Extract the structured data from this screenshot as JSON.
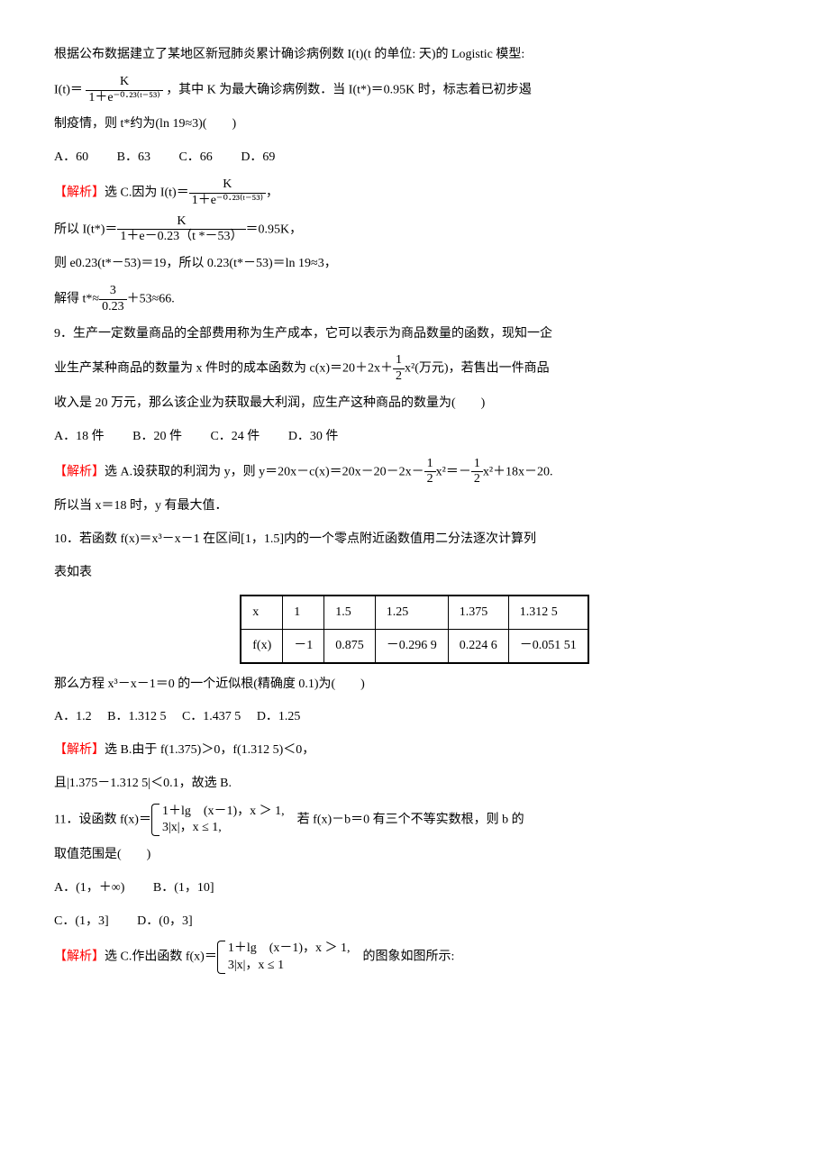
{
  "q8": {
    "intro": "根据公布数据建立了某地区新冠肺炎累计确诊病例数 I(t)(t 的单位: 天)的 Logistic 模型:",
    "formula_lhs": "I(t)＝",
    "frac_num": "K",
    "frac_den": "1＋e⁻⁰·²³⁽ᵗ⁻⁵³⁾",
    "after_formula": "，其中 K 为最大确诊病例数．当 I(t*)＝0.95K 时，标志着已初步遏",
    "line2": "制疫情，则 t*约为(ln 19≈3)(　　)",
    "opts": {
      "A": "A．60",
      "B": "B．63",
      "C": "C．66",
      "D": "D．69"
    },
    "ans_label": "【解析】",
    "ans1_pre": "选 C.因为 I(t)＝",
    "ans1_num": "K",
    "ans1_den": "1＋e⁻⁰·²³⁽ᵗ⁻⁵³⁾",
    "ans1_tail": "，",
    "ans2_pre": "所以 I(t*)＝",
    "ans2_num": "K",
    "ans2_den": "1＋e－0.23（t *－53）",
    "ans2_tail": "＝0.95K，",
    "ans3": "则 e0.23(t*－53)＝19，所以 0.23(t*－53)＝ln 19≈3，",
    "ans4_pre": "解得 t*≈",
    "ans4_num": "3",
    "ans4_den": "0.23",
    "ans4_tail": "＋53≈66."
  },
  "q9": {
    "line1": "9．生产一定数量商品的全部费用称为生产成本，它可以表示为商品数量的函数，现知一企",
    "line2_pre": "业生产某种商品的数量为 x 件时的成本函数为 c(x)＝20＋2x＋",
    "line2_num": "1",
    "line2_den": "2",
    "line2_tail": "x²(万元)，若售出一件商品",
    "line3": "收入是 20 万元，那么该企业为获取最大利润，应生产这种商品的数量为(　　)",
    "opts": {
      "A": "A．18 件",
      "B": "B．20 件",
      "C": "C．24 件",
      "D": "D．30 件"
    },
    "ans_label": "【解析】",
    "ans1_pre": "选 A.设获取的利润为 y，则 y＝20x－c(x)＝20x－20－2x－",
    "ans1_n1": "1",
    "ans1_d1": "2",
    "ans1_mid": "x²＝－",
    "ans1_n2": "1",
    "ans1_d2": "2",
    "ans1_tail": "x²＋18x－20.",
    "ans2": "所以当 x＝18 时，y 有最大值．"
  },
  "q10": {
    "line1": "10．若函数 f(x)＝x³－x－1 在区间[1，1.5]内的一个零点附近函数值用二分法逐次计算列",
    "line2": "表如表",
    "table": {
      "headers": [
        "x",
        "1",
        "1.5",
        "1.25",
        "1.375",
        "1.312 5"
      ],
      "row": [
        "f(x)",
        "－1",
        "0.875",
        "－0.296 9",
        "0.224 6",
        "－0.051 51"
      ]
    },
    "line3": "那么方程 x³－x－1＝0 的一个近似根(精确度 0.1)为(　　)",
    "opts": {
      "A": "A．1.2",
      "B": "B．1.312 5",
      "C": "C．1.437 5",
      "D": "D．1.25"
    },
    "ans_label": "【解析】",
    "ans1": "选 B.由于 f(1.375)＞0，f(1.312 5)＜0，",
    "ans2": "且|1.375－1.312 5|＜0.1，故选 B."
  },
  "q11": {
    "line1_pre": "11．设函数 f(x)＝",
    "pw1": "1＋lg　(x－1)，x ＞ 1,",
    "pw2": "3|x|，x ≤ 1,",
    "line1_tail": "　若 f(x)－b＝0 有三个不等实数根，则 b 的",
    "line2": "取值范围是(　　)",
    "opts": {
      "A": "A．(1，＋∞)",
      "B": "B．(1，10]",
      "C": "C．(1，3]",
      "D": "D．(0，3]"
    },
    "ans_label": "【解析】",
    "ans_pre": "选 C.作出函数 f(x)＝",
    "apw1": "1＋lg　(x－1)，x ＞ 1,",
    "apw2": "3|x|，x ≤ 1",
    "ans_tail": "　的图象如图所示:"
  }
}
